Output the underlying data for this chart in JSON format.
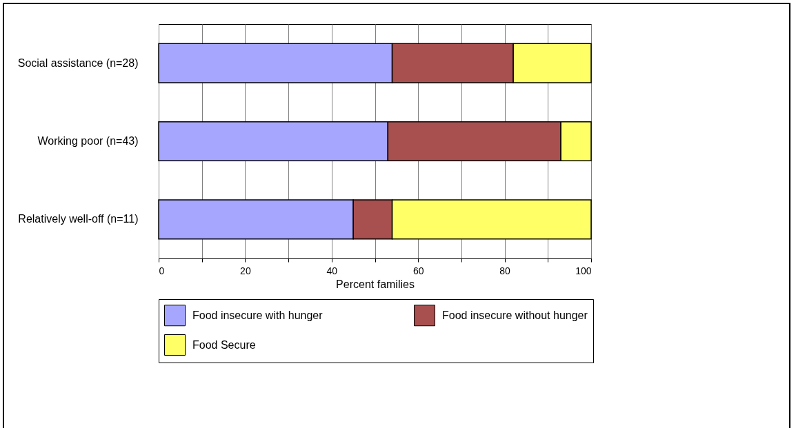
{
  "chart_data": {
    "type": "bar",
    "orientation": "horizontal",
    "stacked": true,
    "xlabel": "Percent families",
    "categories": [
      "Social assistance (n=28)",
      "Working poor (n=43)",
      "Relatively well-off (n=11)"
    ],
    "series": [
      {
        "name": "Food insecure with hunger",
        "color": "#a6a6ff",
        "values": [
          54,
          53,
          45
        ]
      },
      {
        "name": "Food insecure without hunger",
        "color": "#a8504f",
        "values": [
          28,
          40,
          9
        ]
      },
      {
        "name": "Food Secure",
        "color": "#ffff66",
        "values": [
          18,
          7,
          46
        ]
      }
    ],
    "xlim": [
      0,
      100
    ],
    "xticks": [
      0,
      {
        "value": 10,
        "label": null
      },
      20,
      {
        "value": 30,
        "label": null
      },
      40,
      {
        "value": 50,
        "label": null
      },
      60,
      {
        "value": 70,
        "label": null
      },
      80,
      {
        "value": 90,
        "label": null
      },
      100
    ],
    "grid": "x",
    "legend": "bottom"
  }
}
